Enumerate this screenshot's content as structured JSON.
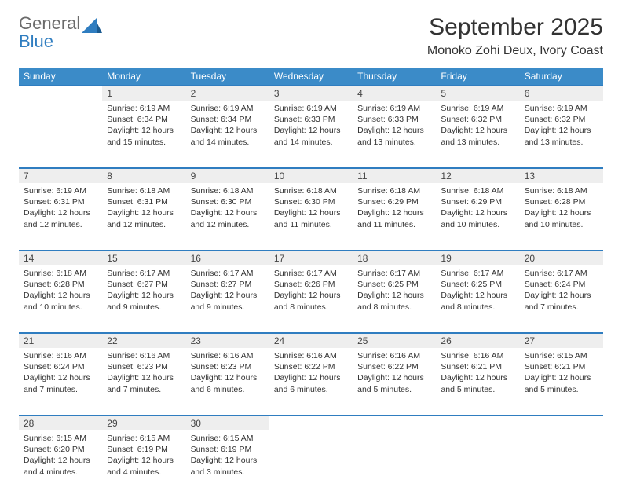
{
  "brand": {
    "line1": "General",
    "line2": "Blue",
    "color_general": "#6b6b6b",
    "color_blue": "#2f7dc0"
  },
  "title": "September 2025",
  "location": "Monoko Zohi Deux, Ivory Coast",
  "calendar": {
    "header_bg": "#3b8bc8",
    "header_fg": "#ffffff",
    "daynum_bg": "#eeeeee",
    "rule_color": "#2f7dc0",
    "day_headers": [
      "Sunday",
      "Monday",
      "Tuesday",
      "Wednesday",
      "Thursday",
      "Friday",
      "Saturday"
    ],
    "weeks": [
      [
        null,
        {
          "n": "1",
          "sunrise": "Sunrise: 6:19 AM",
          "sunset": "Sunset: 6:34 PM",
          "daylight1": "Daylight: 12 hours",
          "daylight2": "and 15 minutes."
        },
        {
          "n": "2",
          "sunrise": "Sunrise: 6:19 AM",
          "sunset": "Sunset: 6:34 PM",
          "daylight1": "Daylight: 12 hours",
          "daylight2": "and 14 minutes."
        },
        {
          "n": "3",
          "sunrise": "Sunrise: 6:19 AM",
          "sunset": "Sunset: 6:33 PM",
          "daylight1": "Daylight: 12 hours",
          "daylight2": "and 14 minutes."
        },
        {
          "n": "4",
          "sunrise": "Sunrise: 6:19 AM",
          "sunset": "Sunset: 6:33 PM",
          "daylight1": "Daylight: 12 hours",
          "daylight2": "and 13 minutes."
        },
        {
          "n": "5",
          "sunrise": "Sunrise: 6:19 AM",
          "sunset": "Sunset: 6:32 PM",
          "daylight1": "Daylight: 12 hours",
          "daylight2": "and 13 minutes."
        },
        {
          "n": "6",
          "sunrise": "Sunrise: 6:19 AM",
          "sunset": "Sunset: 6:32 PM",
          "daylight1": "Daylight: 12 hours",
          "daylight2": "and 13 minutes."
        }
      ],
      [
        {
          "n": "7",
          "sunrise": "Sunrise: 6:19 AM",
          "sunset": "Sunset: 6:31 PM",
          "daylight1": "Daylight: 12 hours",
          "daylight2": "and 12 minutes."
        },
        {
          "n": "8",
          "sunrise": "Sunrise: 6:18 AM",
          "sunset": "Sunset: 6:31 PM",
          "daylight1": "Daylight: 12 hours",
          "daylight2": "and 12 minutes."
        },
        {
          "n": "9",
          "sunrise": "Sunrise: 6:18 AM",
          "sunset": "Sunset: 6:30 PM",
          "daylight1": "Daylight: 12 hours",
          "daylight2": "and 12 minutes."
        },
        {
          "n": "10",
          "sunrise": "Sunrise: 6:18 AM",
          "sunset": "Sunset: 6:30 PM",
          "daylight1": "Daylight: 12 hours",
          "daylight2": "and 11 minutes."
        },
        {
          "n": "11",
          "sunrise": "Sunrise: 6:18 AM",
          "sunset": "Sunset: 6:29 PM",
          "daylight1": "Daylight: 12 hours",
          "daylight2": "and 11 minutes."
        },
        {
          "n": "12",
          "sunrise": "Sunrise: 6:18 AM",
          "sunset": "Sunset: 6:29 PM",
          "daylight1": "Daylight: 12 hours",
          "daylight2": "and 10 minutes."
        },
        {
          "n": "13",
          "sunrise": "Sunrise: 6:18 AM",
          "sunset": "Sunset: 6:28 PM",
          "daylight1": "Daylight: 12 hours",
          "daylight2": "and 10 minutes."
        }
      ],
      [
        {
          "n": "14",
          "sunrise": "Sunrise: 6:18 AM",
          "sunset": "Sunset: 6:28 PM",
          "daylight1": "Daylight: 12 hours",
          "daylight2": "and 10 minutes."
        },
        {
          "n": "15",
          "sunrise": "Sunrise: 6:17 AM",
          "sunset": "Sunset: 6:27 PM",
          "daylight1": "Daylight: 12 hours",
          "daylight2": "and 9 minutes."
        },
        {
          "n": "16",
          "sunrise": "Sunrise: 6:17 AM",
          "sunset": "Sunset: 6:27 PM",
          "daylight1": "Daylight: 12 hours",
          "daylight2": "and 9 minutes."
        },
        {
          "n": "17",
          "sunrise": "Sunrise: 6:17 AM",
          "sunset": "Sunset: 6:26 PM",
          "daylight1": "Daylight: 12 hours",
          "daylight2": "and 8 minutes."
        },
        {
          "n": "18",
          "sunrise": "Sunrise: 6:17 AM",
          "sunset": "Sunset: 6:25 PM",
          "daylight1": "Daylight: 12 hours",
          "daylight2": "and 8 minutes."
        },
        {
          "n": "19",
          "sunrise": "Sunrise: 6:17 AM",
          "sunset": "Sunset: 6:25 PM",
          "daylight1": "Daylight: 12 hours",
          "daylight2": "and 8 minutes."
        },
        {
          "n": "20",
          "sunrise": "Sunrise: 6:17 AM",
          "sunset": "Sunset: 6:24 PM",
          "daylight1": "Daylight: 12 hours",
          "daylight2": "and 7 minutes."
        }
      ],
      [
        {
          "n": "21",
          "sunrise": "Sunrise: 6:16 AM",
          "sunset": "Sunset: 6:24 PM",
          "daylight1": "Daylight: 12 hours",
          "daylight2": "and 7 minutes."
        },
        {
          "n": "22",
          "sunrise": "Sunrise: 6:16 AM",
          "sunset": "Sunset: 6:23 PM",
          "daylight1": "Daylight: 12 hours",
          "daylight2": "and 7 minutes."
        },
        {
          "n": "23",
          "sunrise": "Sunrise: 6:16 AM",
          "sunset": "Sunset: 6:23 PM",
          "daylight1": "Daylight: 12 hours",
          "daylight2": "and 6 minutes."
        },
        {
          "n": "24",
          "sunrise": "Sunrise: 6:16 AM",
          "sunset": "Sunset: 6:22 PM",
          "daylight1": "Daylight: 12 hours",
          "daylight2": "and 6 minutes."
        },
        {
          "n": "25",
          "sunrise": "Sunrise: 6:16 AM",
          "sunset": "Sunset: 6:22 PM",
          "daylight1": "Daylight: 12 hours",
          "daylight2": "and 5 minutes."
        },
        {
          "n": "26",
          "sunrise": "Sunrise: 6:16 AM",
          "sunset": "Sunset: 6:21 PM",
          "daylight1": "Daylight: 12 hours",
          "daylight2": "and 5 minutes."
        },
        {
          "n": "27",
          "sunrise": "Sunrise: 6:15 AM",
          "sunset": "Sunset: 6:21 PM",
          "daylight1": "Daylight: 12 hours",
          "daylight2": "and 5 minutes."
        }
      ],
      [
        {
          "n": "28",
          "sunrise": "Sunrise: 6:15 AM",
          "sunset": "Sunset: 6:20 PM",
          "daylight1": "Daylight: 12 hours",
          "daylight2": "and 4 minutes."
        },
        {
          "n": "29",
          "sunrise": "Sunrise: 6:15 AM",
          "sunset": "Sunset: 6:19 PM",
          "daylight1": "Daylight: 12 hours",
          "daylight2": "and 4 minutes."
        },
        {
          "n": "30",
          "sunrise": "Sunrise: 6:15 AM",
          "sunset": "Sunset: 6:19 PM",
          "daylight1": "Daylight: 12 hours",
          "daylight2": "and 3 minutes."
        },
        null,
        null,
        null,
        null
      ]
    ]
  }
}
